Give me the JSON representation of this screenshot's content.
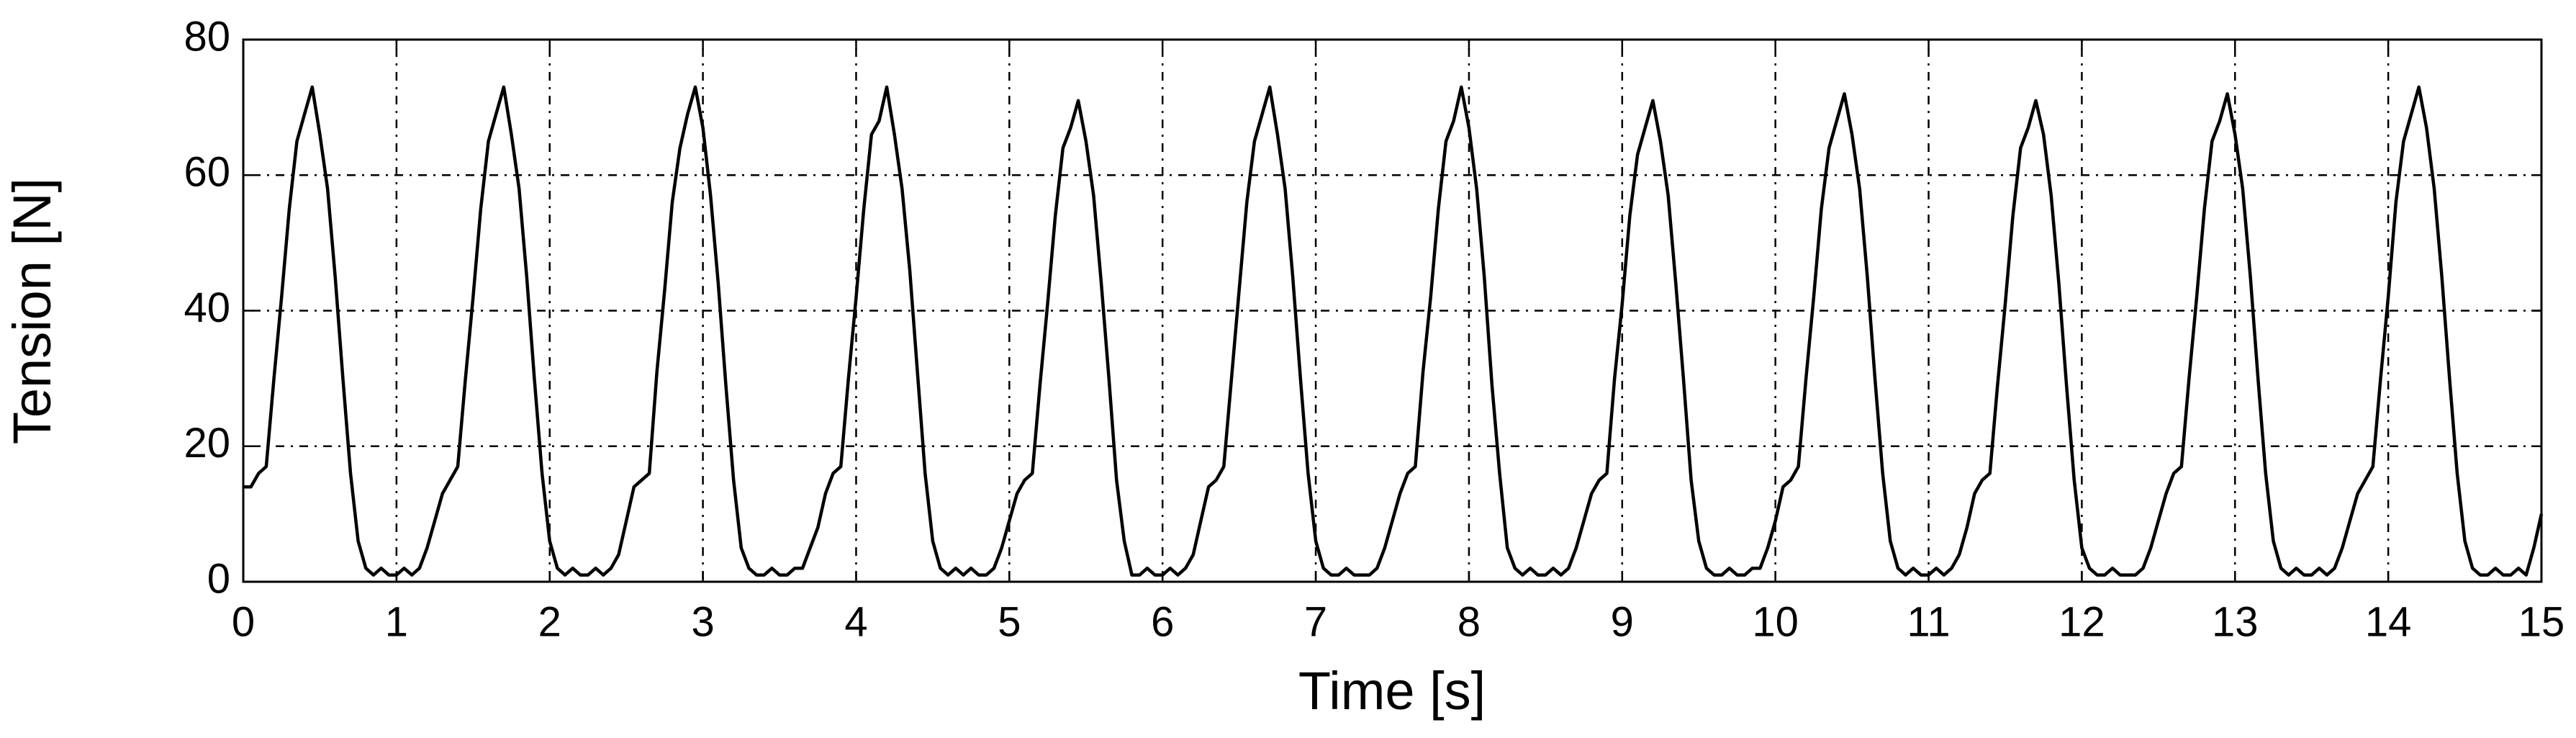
{
  "chart_data": {
    "type": "line",
    "x_label": "Time [s]",
    "y_label": "Tension [N]",
    "xlim": [
      0,
      15
    ],
    "xticks": [
      0,
      1,
      2,
      3,
      4,
      5,
      6,
      7,
      8,
      9,
      10,
      11,
      12,
      13,
      14,
      15
    ],
    "ylim": [
      0,
      80
    ],
    "yticks": [
      0,
      20,
      40,
      60,
      80
    ],
    "grid": true,
    "x": [
      0,
      0.05,
      0.1,
      0.15,
      0.2,
      0.25,
      0.3,
      0.35,
      0.4,
      0.45,
      0.5,
      0.55,
      0.6,
      0.65,
      0.7,
      0.75,
      0.8,
      0.85,
      0.9,
      0.95,
      1,
      1.05,
      1.1,
      1.15,
      1.2,
      1.25,
      1.3,
      1.35,
      1.4,
      1.45,
      1.5,
      1.55,
      1.6,
      1.65,
      1.7,
      1.75,
      1.8,
      1.85,
      1.9,
      1.95,
      2,
      2.05,
      2.1,
      2.15,
      2.2,
      2.25,
      2.3,
      2.35,
      2.4,
      2.45,
      2.5,
      2.55,
      2.6,
      2.65,
      2.7,
      2.75,
      2.8,
      2.85,
      2.9,
      2.95,
      3,
      3.05,
      3.1,
      3.15,
      3.2,
      3.25,
      3.3,
      3.35,
      3.4,
      3.45,
      3.5,
      3.55,
      3.6,
      3.65,
      3.7,
      3.75,
      3.8,
      3.85,
      3.9,
      3.95,
      4,
      4.05,
      4.1,
      4.15,
      4.2,
      4.25,
      4.3,
      4.35,
      4.4,
      4.45,
      4.5,
      4.55,
      4.6,
      4.65,
      4.7,
      4.75,
      4.8,
      4.85,
      4.9,
      4.95,
      5,
      5.05,
      5.1,
      5.15,
      5.2,
      5.25,
      5.3,
      5.35,
      5.4,
      5.45,
      5.5,
      5.55,
      5.6,
      5.65,
      5.7,
      5.75,
      5.8,
      5.85,
      5.9,
      5.95,
      6,
      6.05,
      6.1,
      6.15,
      6.2,
      6.25,
      6.3,
      6.35,
      6.4,
      6.45,
      6.5,
      6.55,
      6.6,
      6.65,
      6.7,
      6.75,
      6.8,
      6.85,
      6.9,
      6.95,
      7,
      7.05,
      7.1,
      7.15,
      7.2,
      7.25,
      7.3,
      7.35,
      7.4,
      7.45,
      7.5,
      7.55,
      7.6,
      7.65,
      7.7,
      7.75,
      7.8,
      7.85,
      7.9,
      7.95,
      8,
      8.05,
      8.1,
      8.15,
      8.2,
      8.25,
      8.3,
      8.35,
      8.4,
      8.45,
      8.5,
      8.55,
      8.6,
      8.65,
      8.7,
      8.75,
      8.8,
      8.85,
      8.9,
      8.95,
      9,
      9.05,
      9.1,
      9.15,
      9.2,
      9.25,
      9.3,
      9.35,
      9.4,
      9.45,
      9.5,
      9.55,
      9.6,
      9.65,
      9.7,
      9.75,
      9.8,
      9.85,
      9.9,
      9.95,
      10,
      10.05,
      10.1,
      10.15,
      10.2,
      10.25,
      10.3,
      10.35,
      10.4,
      10.45,
      10.5,
      10.55,
      10.6,
      10.65,
      10.7,
      10.75,
      10.8,
      10.85,
      10.9,
      10.95,
      11,
      11.05,
      11.1,
      11.15,
      11.2,
      11.25,
      11.3,
      11.35,
      11.4,
      11.45,
      11.5,
      11.55,
      11.6,
      11.65,
      11.7,
      11.75,
      11.8,
      11.85,
      11.9,
      11.95,
      12,
      12.05,
      12.1,
      12.15,
      12.2,
      12.25,
      12.3,
      12.35,
      12.4,
      12.45,
      12.5,
      12.55,
      12.6,
      12.65,
      12.7,
      12.75,
      12.8,
      12.85,
      12.9,
      12.95,
      13,
      13.05,
      13.1,
      13.15,
      13.2,
      13.25,
      13.3,
      13.35,
      13.4,
      13.45,
      13.5,
      13.55,
      13.6,
      13.65,
      13.7,
      13.75,
      13.8,
      13.85,
      13.9,
      13.95,
      14,
      14.05,
      14.1,
      14.15,
      14.2,
      14.25,
      14.3,
      14.35,
      14.4,
      14.45,
      14.5,
      14.55,
      14.6,
      14.65,
      14.7,
      14.75,
      14.8,
      14.85,
      14.9,
      14.95,
      15
    ],
    "series": [
      {
        "name": "Tension",
        "color": "#000000",
        "values": [
          14,
          14,
          16,
          17,
          30,
          42,
          55,
          65,
          69,
          73,
          66,
          58,
          45,
          30,
          16,
          6,
          2,
          1,
          2,
          1,
          1,
          2,
          1,
          2,
          5,
          9,
          13,
          15,
          17,
          30,
          42,
          55,
          65,
          69,
          73,
          66,
          58,
          45,
          30,
          16,
          6,
          2,
          1,
          2,
          1,
          1,
          2,
          1,
          2,
          4,
          9,
          14,
          15,
          16,
          31,
          43,
          56,
          64,
          69,
          73,
          67,
          57,
          44,
          29,
          15,
          5,
          2,
          1,
          1,
          2,
          1,
          1,
          2,
          2,
          5,
          8,
          13,
          16,
          17,
          30,
          42,
          55,
          66,
          68,
          73,
          66,
          58,
          46,
          31,
          16,
          6,
          2,
          1,
          2,
          1,
          2,
          1,
          1,
          2,
          5,
          9,
          13,
          15,
          16,
          29,
          41,
          54,
          64,
          67,
          71,
          65,
          57,
          44,
          30,
          15,
          6,
          1,
          1,
          2,
          1,
          1,
          2,
          1,
          2,
          4,
          9,
          14,
          15,
          17,
          30,
          43,
          56,
          65,
          69,
          73,
          66,
          58,
          45,
          30,
          16,
          6,
          2,
          1,
          1,
          2,
          1,
          1,
          1,
          2,
          5,
          9,
          13,
          16,
          17,
          31,
          42,
          55,
          65,
          68,
          73,
          67,
          58,
          45,
          29,
          16,
          5,
          2,
          1,
          2,
          1,
          1,
          2,
          1,
          2,
          5,
          9,
          13,
          15,
          16,
          30,
          41,
          54,
          63,
          67,
          71,
          65,
          57,
          44,
          30,
          15,
          6,
          2,
          1,
          1,
          2,
          1,
          1,
          2,
          2,
          5,
          9,
          14,
          15,
          17,
          30,
          42,
          55,
          64,
          68,
          72,
          66,
          58,
          45,
          30,
          16,
          6,
          2,
          1,
          2,
          1,
          1,
          2,
          1,
          2,
          4,
          8,
          13,
          15,
          16,
          29,
          41,
          54,
          64,
          67,
          71,
          66,
          57,
          44,
          29,
          15,
          5,
          2,
          1,
          1,
          2,
          1,
          1,
          1,
          2,
          5,
          9,
          13,
          16,
          17,
          30,
          42,
          55,
          65,
          68,
          72,
          66,
          58,
          45,
          30,
          16,
          6,
          2,
          1,
          2,
          1,
          1,
          2,
          1,
          2,
          5,
          9,
          13,
          15,
          17,
          30,
          42,
          56,
          65,
          69,
          73,
          67,
          58,
          45,
          30,
          16,
          6,
          2,
          1,
          1,
          2,
          1,
          1,
          2,
          1,
          5,
          10
        ]
      }
    ]
  }
}
